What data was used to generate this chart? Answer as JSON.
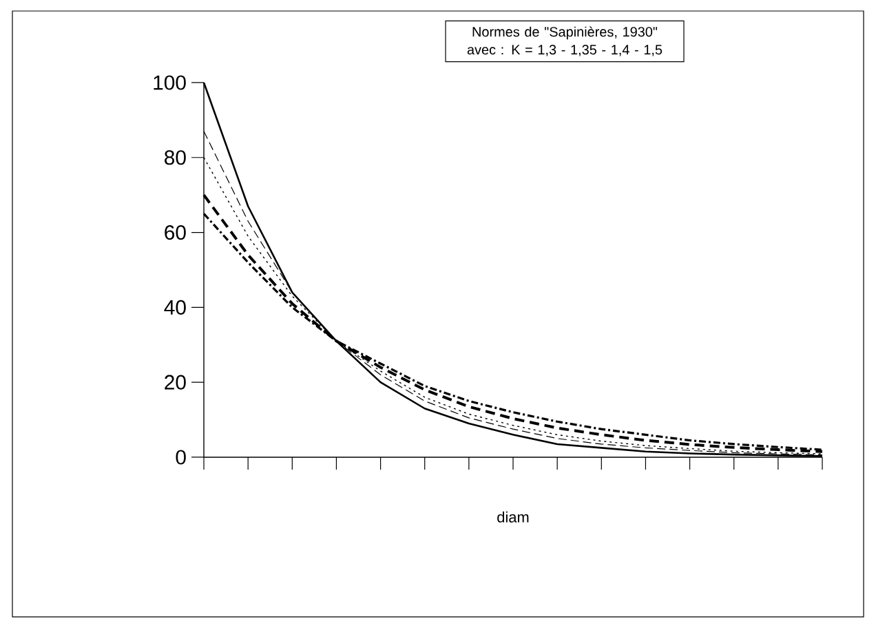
{
  "chart_data": {
    "type": "line",
    "title": "Normes de \"Sapinières, 1930\"",
    "subtitle": "avec : K = 1,3 - 1,35 - 1,4 - 1,5",
    "xlabel": "diam",
    "categories": [
      null,
      null,
      null,
      null,
      null,
      null,
      null,
      null,
      null,
      null,
      null,
      null,
      null,
      null,
      null
    ],
    "ylim": [
      0,
      100
    ],
    "yticks": [
      0,
      20,
      40,
      60,
      80,
      100
    ],
    "grid": false,
    "marker": "none",
    "series": [
      {
        "color": "#000000",
        "line_style": "solid",
        "values": [
          100,
          67,
          44,
          31,
          20,
          13,
          9,
          6,
          3.5,
          2.5,
          1.5,
          1,
          0.7,
          0.5,
          0.3
        ]
      },
      {
        "color": "#000000",
        "line_style": "dashed",
        "values": [
          87,
          63,
          44,
          31,
          22,
          15,
          10.5,
          7.5,
          5,
          3.5,
          2.5,
          1.8,
          1.2,
          0.9,
          0.6
        ]
      },
      {
        "color": "#000000",
        "line_style": "dotted",
        "values": [
          80,
          59,
          43,
          31,
          23,
          16,
          11.5,
          8.5,
          6,
          4.3,
          3.1,
          2.3,
          1.6,
          1.2,
          0.9
        ]
      },
      {
        "color": "#000000",
        "line_style": "dashed",
        "values": [
          70,
          54,
          41,
          31,
          24,
          18,
          13.5,
          10.3,
          7.8,
          6,
          4.5,
          3.4,
          2.6,
          2,
          1.5
        ]
      },
      {
        "color": "#000000",
        "line_style": "dotted",
        "values": [
          65,
          52,
          40,
          31,
          25,
          19,
          15,
          12,
          9.5,
          7.5,
          6,
          4.5,
          3.5,
          2.7,
          2
        ]
      }
    ]
  }
}
